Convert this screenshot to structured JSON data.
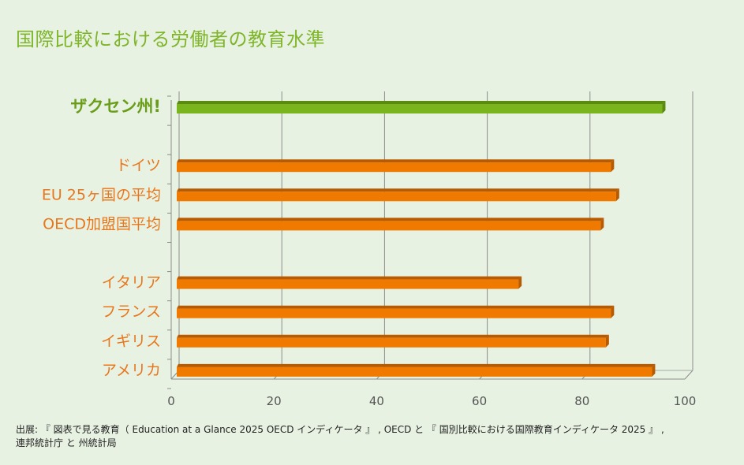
{
  "chart_data": {
    "type": "bar",
    "orientation": "horizontal",
    "title": "国際比較における労働者の教育水準",
    "categories": [
      "ザクセン州!",
      "",
      "ドイツ",
      "EU 25ヶ国の平均",
      "OECD加盟国平均",
      "",
      "イタリア",
      "フランス",
      "イギリス",
      "アメリカ"
    ],
    "values": [
      95,
      null,
      85,
      86,
      83,
      null,
      67,
      85,
      84,
      93
    ],
    "highlight_index": 0,
    "xlim": [
      0,
      100
    ],
    "xticks": [
      0,
      20,
      40,
      60,
      80,
      100
    ],
    "xlabel": "",
    "ylabel": "",
    "grid": true,
    "colors": {
      "highlight": "#7ab51d",
      "highlight_dark": "#5a8a10",
      "bar": "#f07a00",
      "bar_dark": "#b85a00",
      "highlight_label": "#6a9d1a",
      "label": "#e8761a"
    }
  },
  "source": {
    "line1": "出展: 『 図表で見る教育（ Education at a Glance 2025 OECD インディケータ 』 , OECD と 『 国別比較における国際教育インディケータ 2025 』 ,",
    "line2": "連邦統計庁 と 州統計局"
  }
}
